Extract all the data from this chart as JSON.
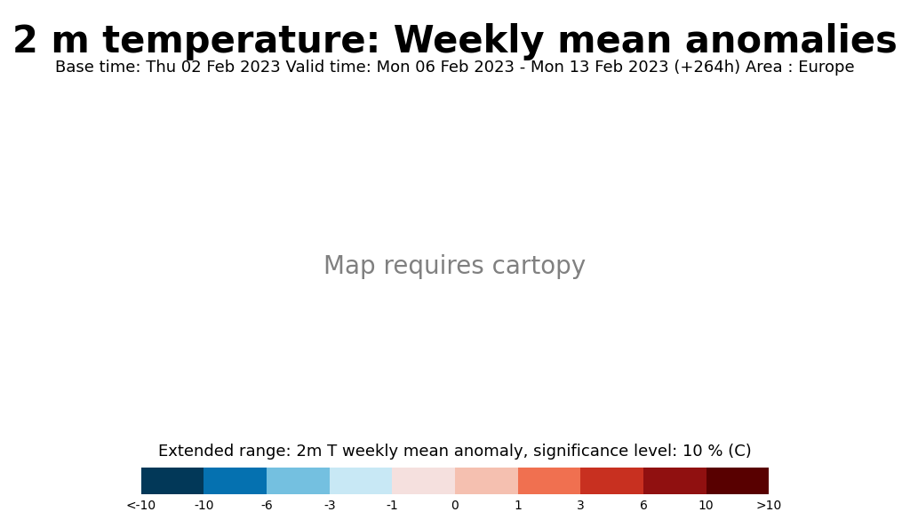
{
  "title": "2 m temperature: Weekly mean anomalies",
  "subtitle": "Base time: Thu 02 Feb 2023 Valid time: Mon 06 Feb 2023 - Mon 13 Feb 2023 (+264h) Area : Europe",
  "colorbar_label": "Extended range: 2m T weekly mean anomaly, significance level: 10 % (C)",
  "colorbar_ticks": [
    "<-10",
    "-10",
    "-6",
    "-3",
    "-1",
    "0",
    "1",
    "3",
    "6",
    "10",
    ">10"
  ],
  "colorbar_values": [
    -12,
    -10,
    -6,
    -3,
    -1,
    0,
    1,
    3,
    6,
    10,
    12
  ],
  "colors": [
    "#023858",
    "#0571b0",
    "#4eb3d3",
    "#a8ddb5",
    "#e0f3db",
    "#fff7ec",
    "#fdd49e",
    "#fc8d59",
    "#d7301f",
    "#7f0000"
  ],
  "bg_color": "#ffffff",
  "map_bg": "#ffffff",
  "title_fontsize": 30,
  "subtitle_fontsize": 13,
  "colorbar_label_fontsize": 13
}
